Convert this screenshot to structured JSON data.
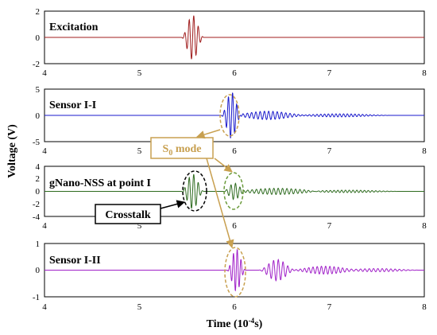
{
  "chart_data": [
    {
      "type": "line",
      "title": "Excitation",
      "xlim": [
        4,
        8
      ],
      "ylim": [
        -2,
        2
      ],
      "xticks": [
        "4",
        "5",
        "6",
        "7",
        "8"
      ],
      "yticks": [
        "2",
        "0",
        "-2"
      ],
      "series": [
        {
          "color": "#a01e1e",
          "shape": "tone-burst",
          "center": 5.56,
          "width": 0.12,
          "cycles": 5,
          "amplitude": 1.7
        }
      ]
    },
    {
      "type": "line",
      "title": "Sensor I-I",
      "xlim": [
        4,
        8
      ],
      "ylim": [
        -5,
        5
      ],
      "xticks": [
        "4",
        "5",
        "6",
        "7",
        "8"
      ],
      "yticks": [
        "5",
        "0",
        "-5"
      ],
      "series": [
        {
          "color": "#1a1acc",
          "shape": "wave-packets",
          "packets": [
            {
              "center": 5.97,
              "width": 0.11,
              "cycles": 5,
              "amplitude": 4.5
            },
            {
              "center": 6.35,
              "width": 0.45,
              "cycles": 20,
              "amplitude": 0.8
            },
            {
              "center": 7.1,
              "width": 0.6,
              "cycles": 30,
              "amplitude": 0.3
            }
          ]
        }
      ]
    },
    {
      "type": "line",
      "title": "gNano-NSS at point I",
      "xlim": [
        4,
        8
      ],
      "ylim": [
        -4,
        4
      ],
      "xticks": [
        "4",
        "5",
        "6",
        "7",
        "8"
      ],
      "yticks": [
        "4",
        "2",
        "0",
        "-2",
        "-4"
      ],
      "series": [
        {
          "color": "#2e6b1f",
          "shape": "wave-packets",
          "packets": [
            {
              "center": 5.56,
              "width": 0.12,
              "cycles": 5,
              "amplitude": 2.8
            },
            {
              "center": 6.0,
              "width": 0.12,
              "cycles": 5,
              "amplitude": 1.3
            },
            {
              "center": 6.45,
              "width": 0.55,
              "cycles": 24,
              "amplitude": 0.5
            },
            {
              "center": 7.2,
              "width": 0.6,
              "cycles": 30,
              "amplitude": 0.2
            }
          ]
        }
      ]
    },
    {
      "type": "line",
      "title": "Sensor I-II",
      "xlim": [
        4,
        8
      ],
      "ylim": [
        -1,
        1
      ],
      "xticks": [
        "4",
        "5",
        "6",
        "7",
        "8"
      ],
      "yticks": [
        "1",
        "0",
        "-1"
      ],
      "series": [
        {
          "color": "#a020c8",
          "shape": "wave-packets",
          "packets": [
            {
              "center": 6.02,
              "width": 0.1,
              "cycles": 5,
              "amplitude": 0.8
            },
            {
              "center": 6.45,
              "width": 0.2,
              "cycles": 8,
              "amplitude": 0.4
            },
            {
              "center": 6.95,
              "width": 0.4,
              "cycles": 18,
              "amplitude": 0.15
            },
            {
              "center": 7.5,
              "width": 0.5,
              "cycles": 22,
              "amplitude": 0.06
            }
          ]
        }
      ]
    }
  ],
  "ylabel": "Voltage (V)",
  "xlabel": {
    "main": "Time (10",
    "sup": "-4",
    "tail": "s)"
  },
  "annotations": {
    "s0_mode": {
      "base": "S",
      "sub": "0",
      "tail": " mode",
      "color": "#c8a050"
    },
    "crosstalk": {
      "text": "Crosstalk",
      "color": "#000000"
    }
  }
}
